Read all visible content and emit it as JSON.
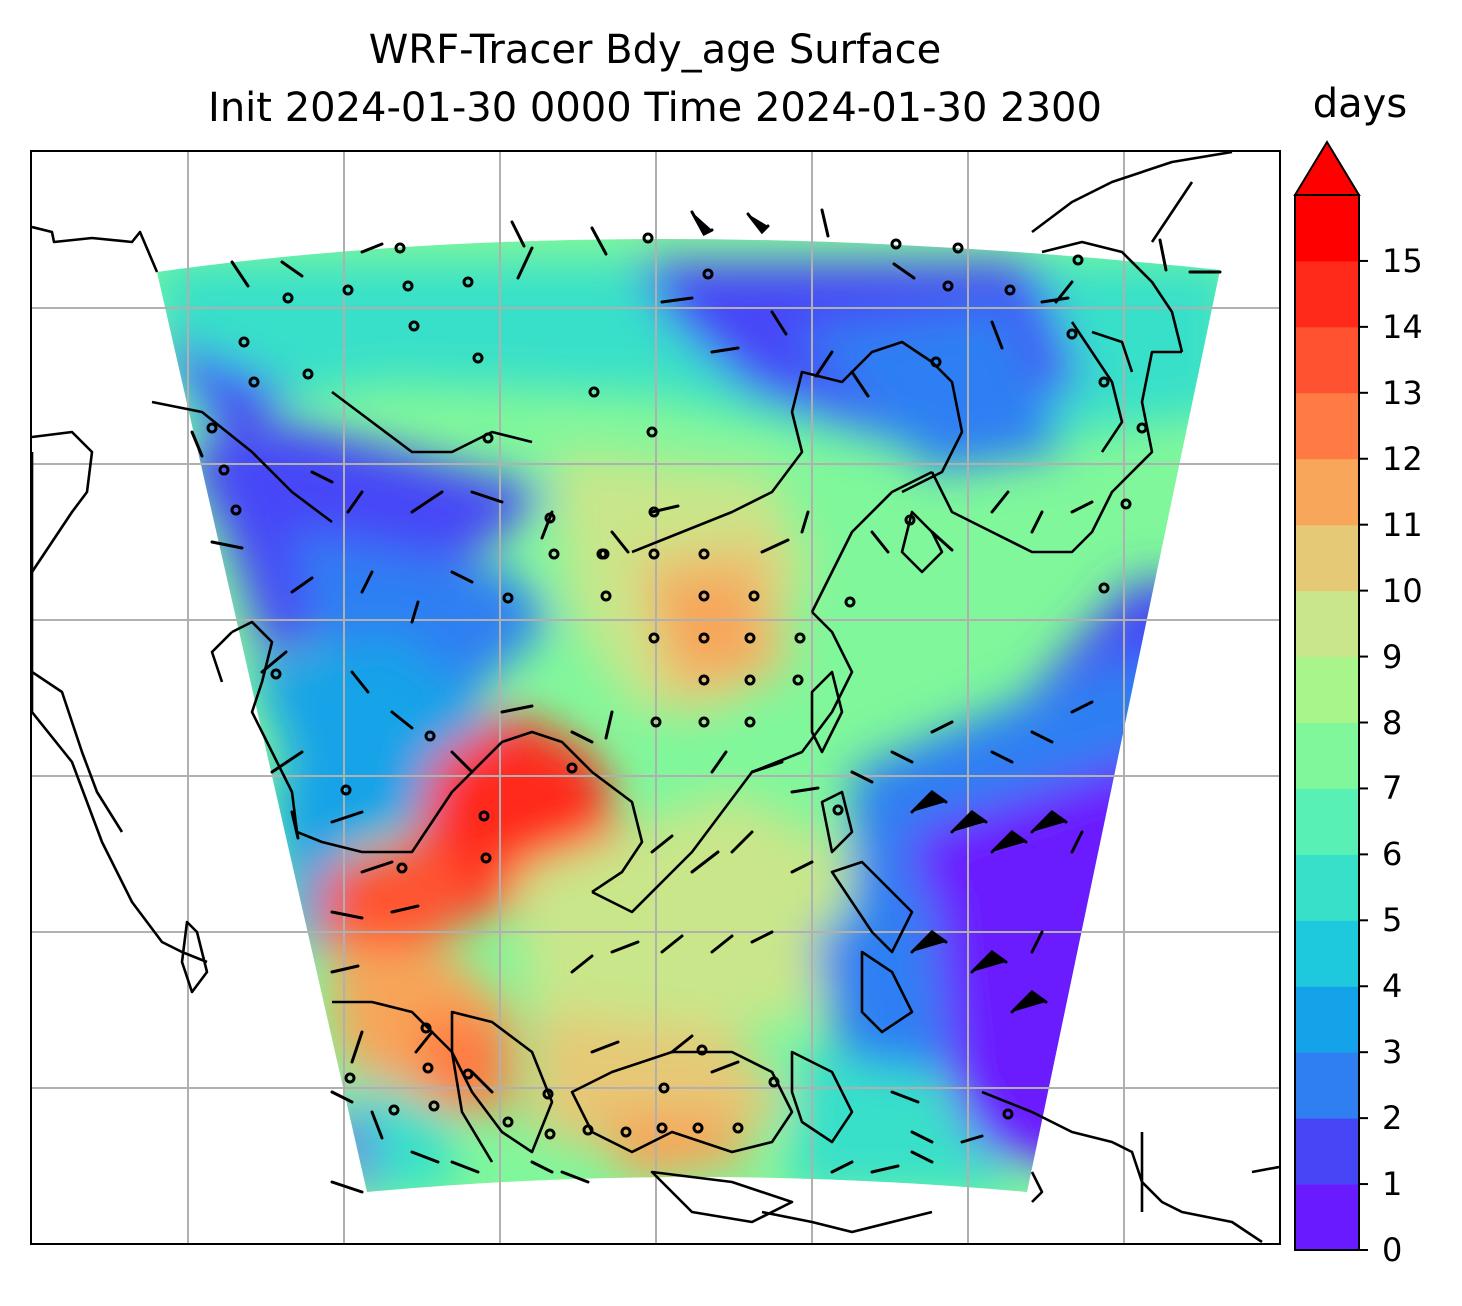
{
  "title": {
    "line1": "WRF-Tracer Bdy_age Surface",
    "line2": "Init 2024-01-30 0000 Time 2024-01-30 2300"
  },
  "colorbar": {
    "label": "days",
    "extend": "max",
    "ticks": [
      "0",
      "1",
      "2",
      "3",
      "4",
      "5",
      "6",
      "7",
      "8",
      "9",
      "10",
      "11",
      "12",
      "13",
      "14",
      "15"
    ],
    "colors": [
      "#6a1aff",
      "#4646f7",
      "#2f7ff3",
      "#14a3e8",
      "#1ec9dd",
      "#38e0c9",
      "#58f0b4",
      "#80f79b",
      "#a8f58a",
      "#c9e68a",
      "#e5c977",
      "#f7a65a",
      "#ff7b43",
      "#ff5230",
      "#ff2a1a",
      "#ff0000"
    ]
  },
  "map": {
    "field": "Bdy_age",
    "units": "days",
    "gridlines": true,
    "features": [
      "coastlines",
      "country-borders",
      "wind-barbs",
      "calm-circles"
    ]
  }
}
